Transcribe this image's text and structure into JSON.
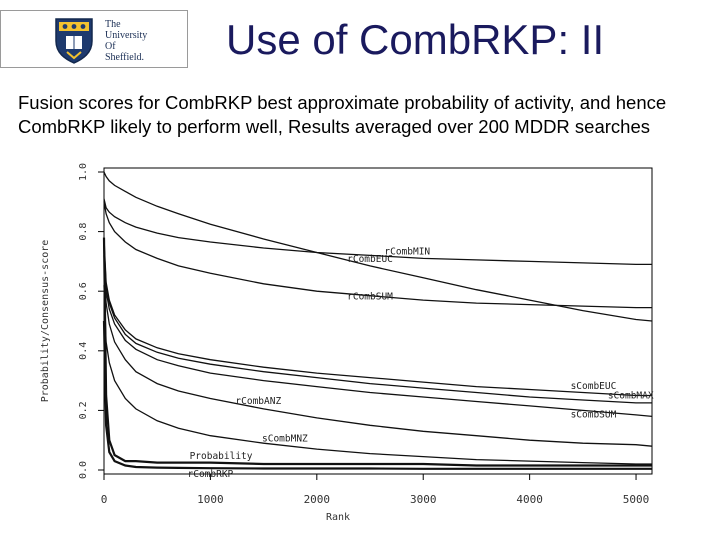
{
  "logo": {
    "text": "The\nUniversity\nOf\nSheffield."
  },
  "slide": {
    "title": "Use of CombRKP: II",
    "subtitle": "Fusion scores for CombRKP best approximate probability of activity, and hence CombRKP likely to perform well,  Results averaged over 200 MDDR searches"
  },
  "chart_data": {
    "type": "line",
    "xlabel": "Rank",
    "ylabel": "Probability/Consensus-score",
    "xlim": [
      0,
      5150
    ],
    "ylim": [
      0,
      1.0
    ],
    "xticks": [
      0,
      1000,
      2000,
      3000,
      4000,
      5000
    ],
    "yticks": [
      0.0,
      0.2,
      0.4,
      0.6,
      0.8,
      1.0
    ],
    "x": [
      0,
      20,
      50,
      100,
      200,
      300,
      500,
      700,
      1000,
      1500,
      2000,
      2500,
      3000,
      3500,
      4000,
      4500,
      5000,
      5150
    ],
    "series": [
      {
        "name": "rCombEUC",
        "values": [
          1.0,
          0.985,
          0.97,
          0.955,
          0.935,
          0.915,
          0.885,
          0.86,
          0.825,
          0.775,
          0.73,
          0.685,
          0.645,
          0.605,
          0.57,
          0.535,
          0.505,
          0.5
        ]
      },
      {
        "name": "rCombMIN",
        "values": [
          0.91,
          0.88,
          0.865,
          0.85,
          0.83,
          0.815,
          0.795,
          0.78,
          0.765,
          0.745,
          0.73,
          0.72,
          0.71,
          0.705,
          0.7,
          0.695,
          0.69,
          0.69
        ]
      },
      {
        "name": "rCombSUM",
        "values": [
          0.9,
          0.86,
          0.83,
          0.8,
          0.765,
          0.74,
          0.71,
          0.685,
          0.66,
          0.625,
          0.6,
          0.585,
          0.57,
          0.56,
          0.555,
          0.55,
          0.545,
          0.545
        ]
      },
      {
        "name": "sCombEUC",
        "values": [
          0.78,
          0.63,
          0.57,
          0.52,
          0.47,
          0.44,
          0.41,
          0.39,
          0.37,
          0.345,
          0.325,
          0.31,
          0.295,
          0.28,
          0.27,
          0.26,
          0.25,
          0.25
        ]
      },
      {
        "name": "sCombMAX",
        "values": [
          0.76,
          0.62,
          0.56,
          0.51,
          0.455,
          0.425,
          0.395,
          0.375,
          0.355,
          0.33,
          0.31,
          0.29,
          0.275,
          0.26,
          0.245,
          0.235,
          0.225,
          0.225
        ]
      },
      {
        "name": "sCombSUM",
        "values": [
          0.75,
          0.6,
          0.54,
          0.49,
          0.435,
          0.405,
          0.37,
          0.35,
          0.325,
          0.3,
          0.28,
          0.26,
          0.245,
          0.23,
          0.215,
          0.2,
          0.185,
          0.18
        ]
      },
      {
        "name": "rCombANZ",
        "values": [
          0.72,
          0.56,
          0.49,
          0.43,
          0.37,
          0.33,
          0.29,
          0.265,
          0.24,
          0.205,
          0.175,
          0.15,
          0.13,
          0.115,
          0.1,
          0.09,
          0.085,
          0.08
        ]
      },
      {
        "name": "sCombMNZ",
        "values": [
          0.62,
          0.43,
          0.36,
          0.3,
          0.24,
          0.205,
          0.165,
          0.14,
          0.115,
          0.09,
          0.07,
          0.055,
          0.045,
          0.035,
          0.03,
          0.025,
          0.02,
          0.02
        ]
      },
      {
        "name": "Probability",
        "values": [
          0.78,
          0.25,
          0.1,
          0.05,
          0.03,
          0.03,
          0.025,
          0.025,
          0.025,
          0.02,
          0.02,
          0.02,
          0.02,
          0.015,
          0.015,
          0.015,
          0.015,
          0.015
        ]
      },
      {
        "name": "rCombRKP",
        "values": [
          0.5,
          0.15,
          0.06,
          0.03,
          0.015,
          0.01,
          0.008,
          0.007,
          0.006,
          0.005,
          0.005,
          0.005,
          0.004,
          0.004,
          0.004,
          0.004,
          0.004,
          0.004
        ]
      }
    ]
  }
}
